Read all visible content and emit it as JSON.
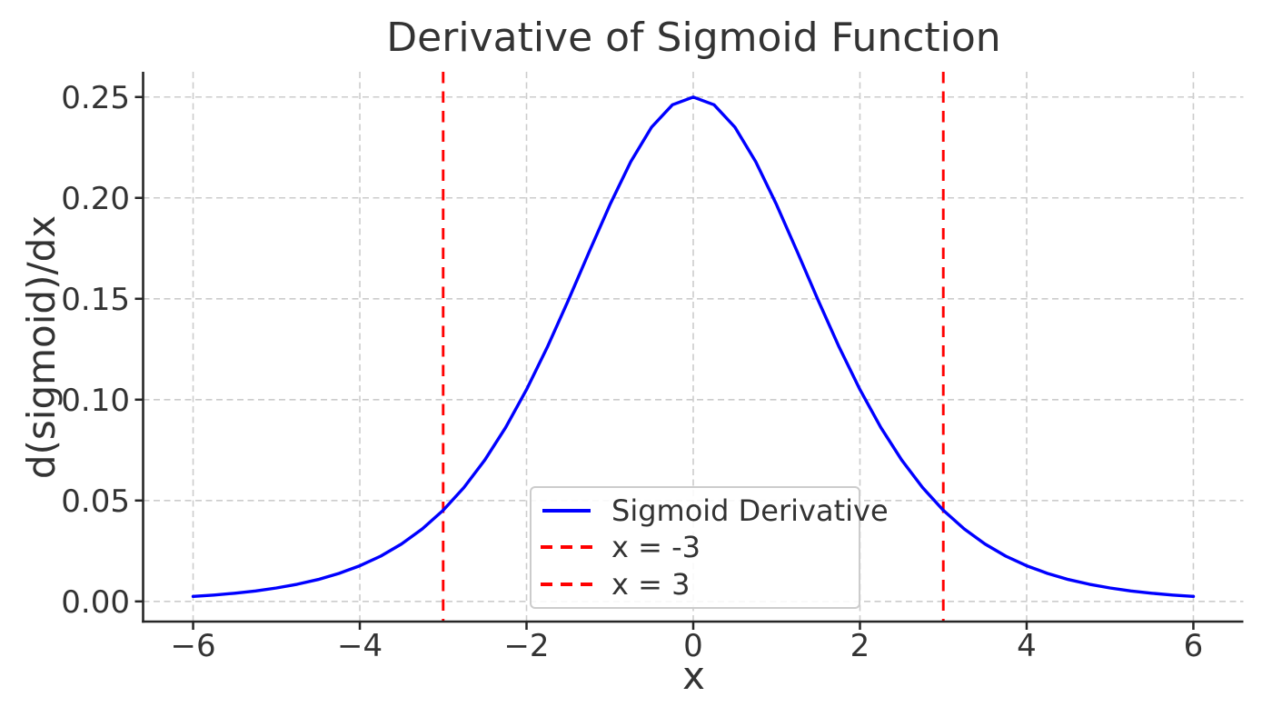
{
  "chart_data": {
    "type": "line",
    "title": "Derivative of Sigmoid Function",
    "xlabel": "x",
    "ylabel": "d(sigmoid)/dx",
    "xlim": [
      -6.6,
      6.6
    ],
    "ylim": [
      -0.01,
      0.2625
    ],
    "xticks": {
      "values": [
        -6,
        -4,
        -2,
        0,
        2,
        4,
        6
      ],
      "labels": [
        "−6",
        "−4",
        "−2",
        "0",
        "2",
        "4",
        "6"
      ]
    },
    "yticks": {
      "values": [
        0.0,
        0.05,
        0.1,
        0.15,
        0.2,
        0.25
      ],
      "labels": [
        "0.00",
        "0.05",
        "0.10",
        "0.15",
        "0.20",
        "0.25"
      ]
    },
    "grid": {
      "on": true,
      "linestyle": "dashed",
      "color": "#cccccc"
    },
    "axis_color": "#262626",
    "text_color": "#333333",
    "series": [
      {
        "name": "Sigmoid Derivative",
        "color": "#0000ff",
        "linestyle": "solid",
        "x": [
          -6,
          -5.75,
          -5.5,
          -5.25,
          -5,
          -4.75,
          -4.5,
          -4.25,
          -4,
          -3.75,
          -3.5,
          -3.25,
          -3,
          -2.75,
          -2.5,
          -2.25,
          -2,
          -1.75,
          -1.5,
          -1.25,
          -1,
          -0.75,
          -0.5,
          -0.25,
          0,
          0.25,
          0.5,
          0.75,
          1,
          1.25,
          1.5,
          1.75,
          2,
          2.25,
          2.5,
          2.75,
          3,
          3.25,
          3.5,
          3.75,
          4,
          4.25,
          4.5,
          4.75,
          5,
          5.25,
          5.5,
          5.75,
          6
        ],
        "y": [
          0.002466,
          0.003158,
          0.004053,
          0.005193,
          0.006648,
          0.008503,
          0.010866,
          0.013866,
          0.017663,
          0.022449,
          0.028453,
          0.035934,
          0.045177,
          0.056477,
          0.070104,
          0.086258,
          0.104994,
          0.126129,
          0.149146,
          0.173104,
          0.196612,
          0.217895,
          0.235004,
          0.246134,
          0.25,
          0.246134,
          0.235004,
          0.217895,
          0.196612,
          0.173104,
          0.149146,
          0.126129,
          0.104994,
          0.086258,
          0.070104,
          0.056477,
          0.045177,
          0.035934,
          0.028453,
          0.022449,
          0.017663,
          0.013866,
          0.010866,
          0.008503,
          0.006648,
          0.005193,
          0.004053,
          0.003158,
          0.002466
        ]
      }
    ],
    "vlines": [
      {
        "x": -3,
        "label": "x = -3",
        "color": "#ff0000",
        "linestyle": "dashed"
      },
      {
        "x": 3,
        "label": "x = 3",
        "color": "#ff0000",
        "linestyle": "dashed"
      }
    ],
    "legend": {
      "location": "inside lower-center",
      "entries": [
        {
          "label": "Sigmoid Derivative",
          "color": "#0000ff",
          "linestyle": "solid"
        },
        {
          "label": "x = -3",
          "color": "#ff0000",
          "linestyle": "dashed"
        },
        {
          "label": "x = 3",
          "color": "#ff0000",
          "linestyle": "dashed"
        }
      ]
    }
  }
}
